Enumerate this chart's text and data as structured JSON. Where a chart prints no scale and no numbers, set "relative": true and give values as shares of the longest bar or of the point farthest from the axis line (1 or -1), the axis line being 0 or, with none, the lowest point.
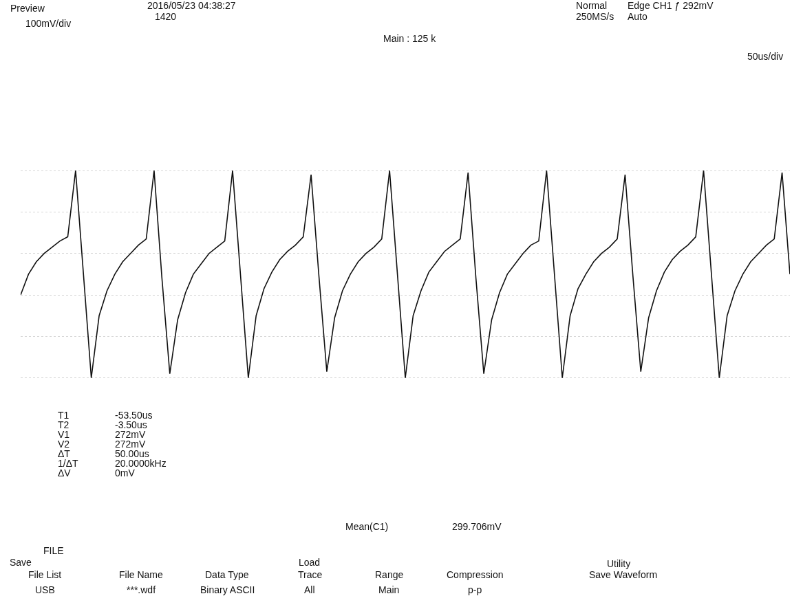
{
  "chart_data": {
    "type": "line",
    "relative": true,
    "grid": true,
    "line_style": "solid",
    "color": "#111111",
    "categories": [
      null,
      null,
      null,
      null,
      null,
      null,
      null,
      null,
      null,
      null,
      null,
      null,
      null,
      null,
      null,
      null,
      null,
      null,
      null,
      null,
      null,
      null,
      null,
      null,
      null,
      null,
      null,
      null,
      null,
      null,
      null,
      null,
      null,
      null,
      null,
      null,
      null,
      null,
      null,
      null,
      null,
      null,
      null,
      null,
      null,
      null,
      null,
      null,
      null,
      null,
      null,
      null,
      null,
      null,
      null,
      null,
      null,
      null,
      null,
      null,
      null,
      null,
      null,
      null,
      null,
      null,
      null,
      null,
      null,
      null,
      null,
      null,
      null,
      null,
      null,
      null,
      null,
      null,
      null,
      null,
      null,
      null,
      null,
      null,
      null,
      null,
      null,
      null,
      null,
      null,
      null,
      null,
      null,
      null,
      null,
      null,
      null,
      null,
      null
    ],
    "values": [
      0.4,
      0.5,
      0.56,
      0.6,
      0.63,
      0.66,
      0.68,
      1.0,
      0.5,
      0.0,
      0.3,
      0.42,
      0.5,
      0.56,
      0.6,
      0.64,
      0.67,
      1.0,
      0.48,
      0.02,
      0.28,
      0.41,
      0.5,
      0.55,
      0.6,
      0.63,
      0.66,
      1.0,
      0.5,
      0.0,
      0.3,
      0.43,
      0.51,
      0.57,
      0.61,
      0.64,
      0.68,
      0.98,
      0.49,
      0.03,
      0.29,
      0.42,
      0.5,
      0.56,
      0.6,
      0.63,
      0.67,
      1.0,
      0.5,
      0.0,
      0.3,
      0.42,
      0.51,
      0.56,
      0.61,
      0.64,
      0.67,
      0.99,
      0.48,
      0.02,
      0.28,
      0.41,
      0.5,
      0.55,
      0.6,
      0.64,
      0.66,
      1.0,
      0.5,
      0.0,
      0.3,
      0.43,
      0.5,
      0.56,
      0.6,
      0.63,
      0.67,
      0.98,
      0.49,
      0.03,
      0.29,
      0.42,
      0.51,
      0.57,
      0.61,
      0.64,
      0.68,
      1.0,
      0.5,
      0.0,
      0.3,
      0.42,
      0.5,
      0.56,
      0.6,
      0.64,
      0.67,
      0.99,
      0.5
    ],
    "annotations": [
      "Preview",
      "2016/05/23 04:38:27",
      "1420",
      "Normal",
      "250MS/s",
      "Edge CH1 ƒ 292mV",
      "Auto",
      "100mV/div",
      "Main : 125 k",
      "50us/div",
      "T1",
      "-53.50us",
      "T2",
      "-3.50us",
      "V1",
      "272mV",
      "V2",
      "272mV",
      "ΔT",
      "50.00us",
      "1/ΔT",
      "20.0000kHz",
      "ΔV",
      "0mV",
      "Mean(C1)",
      "299.706mV",
      "FILE",
      "Save",
      "Load",
      "Utility",
      "File List",
      "USB",
      "File Name",
      "***.wdf",
      "Data Type",
      "Binary ASCII",
      "Trace",
      "All",
      "Range",
      "Main",
      "Compression",
      "p-p",
      "Save Waveform"
    ]
  }
}
